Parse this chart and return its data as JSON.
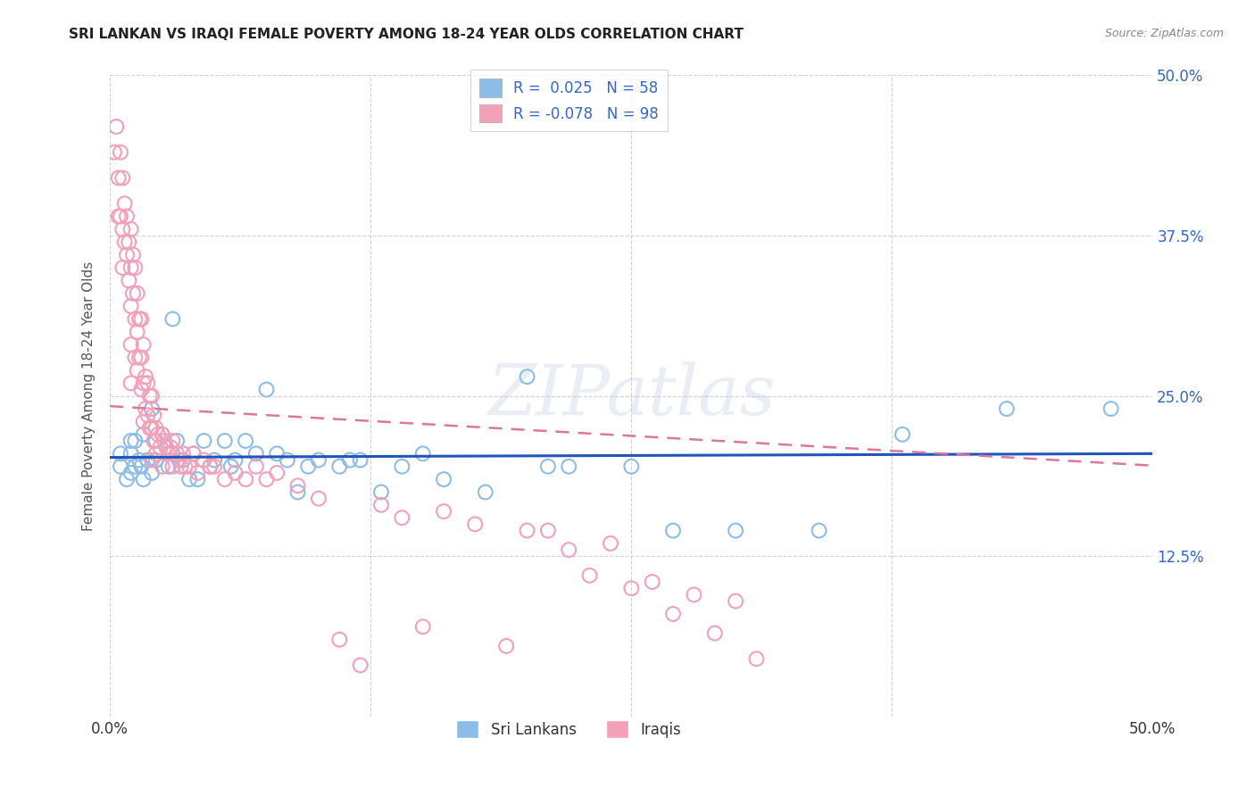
{
  "title": "SRI LANKAN VS IRAQI FEMALE POVERTY AMONG 18-24 YEAR OLDS CORRELATION CHART",
  "source": "Source: ZipAtlas.com",
  "ylabel": "Female Poverty Among 18-24 Year Olds",
  "xlim": [
    0,
    0.5
  ],
  "ylim": [
    0,
    0.5
  ],
  "sri_lankan_color": "#8BBDE8",
  "sri_lankan_line_color": "#2255BB",
  "iraqi_color": "#F4A0B8",
  "iraqi_line_color": "#DD7799",
  "sri_lankan_R": 0.025,
  "sri_lankan_N": 58,
  "iraqi_R": -0.078,
  "iraqi_N": 98,
  "watermark": "ZIPatlas",
  "background_color": "#ffffff",
  "grid_color": "#cccccc",
  "right_tick_color": "#3366CC",
  "sri_lankans_x": [
    0.005,
    0.005,
    0.008,
    0.01,
    0.01,
    0.01,
    0.012,
    0.012,
    0.014,
    0.015,
    0.016,
    0.016,
    0.018,
    0.02,
    0.02,
    0.022,
    0.022,
    0.025,
    0.028,
    0.03,
    0.03,
    0.032,
    0.035,
    0.038,
    0.04,
    0.042,
    0.045,
    0.048,
    0.05,
    0.055,
    0.058,
    0.06,
    0.065,
    0.07,
    0.075,
    0.08,
    0.085,
    0.09,
    0.095,
    0.1,
    0.11,
    0.115,
    0.12,
    0.13,
    0.14,
    0.15,
    0.16,
    0.18,
    0.2,
    0.21,
    0.22,
    0.25,
    0.27,
    0.3,
    0.34,
    0.38,
    0.43,
    0.48
  ],
  "sri_lankans_y": [
    0.205,
    0.195,
    0.185,
    0.215,
    0.205,
    0.19,
    0.215,
    0.195,
    0.2,
    0.195,
    0.22,
    0.185,
    0.2,
    0.24,
    0.19,
    0.215,
    0.2,
    0.22,
    0.195,
    0.31,
    0.205,
    0.215,
    0.2,
    0.185,
    0.205,
    0.185,
    0.215,
    0.195,
    0.2,
    0.215,
    0.195,
    0.2,
    0.215,
    0.205,
    0.255,
    0.205,
    0.2,
    0.175,
    0.195,
    0.2,
    0.195,
    0.2,
    0.2,
    0.175,
    0.195,
    0.205,
    0.185,
    0.175,
    0.265,
    0.195,
    0.195,
    0.195,
    0.145,
    0.145,
    0.145,
    0.22,
    0.24,
    0.24
  ],
  "iraqis_x": [
    0.002,
    0.003,
    0.004,
    0.004,
    0.005,
    0.005,
    0.006,
    0.006,
    0.006,
    0.007,
    0.007,
    0.008,
    0.008,
    0.009,
    0.009,
    0.01,
    0.01,
    0.01,
    0.01,
    0.01,
    0.011,
    0.011,
    0.012,
    0.012,
    0.012,
    0.013,
    0.013,
    0.013,
    0.014,
    0.014,
    0.015,
    0.015,
    0.015,
    0.016,
    0.016,
    0.016,
    0.017,
    0.017,
    0.018,
    0.018,
    0.019,
    0.019,
    0.02,
    0.02,
    0.02,
    0.021,
    0.021,
    0.022,
    0.022,
    0.023,
    0.024,
    0.025,
    0.025,
    0.026,
    0.027,
    0.028,
    0.029,
    0.03,
    0.03,
    0.032,
    0.033,
    0.034,
    0.035,
    0.036,
    0.038,
    0.04,
    0.042,
    0.045,
    0.048,
    0.05,
    0.055,
    0.06,
    0.065,
    0.07,
    0.075,
    0.08,
    0.09,
    0.1,
    0.11,
    0.12,
    0.13,
    0.14,
    0.15,
    0.16,
    0.175,
    0.19,
    0.2,
    0.21,
    0.22,
    0.23,
    0.24,
    0.25,
    0.26,
    0.27,
    0.28,
    0.29,
    0.3,
    0.31
  ],
  "iraqis_y": [
    0.44,
    0.46,
    0.42,
    0.39,
    0.44,
    0.39,
    0.42,
    0.38,
    0.35,
    0.4,
    0.37,
    0.39,
    0.36,
    0.37,
    0.34,
    0.38,
    0.35,
    0.32,
    0.29,
    0.26,
    0.36,
    0.33,
    0.35,
    0.31,
    0.28,
    0.33,
    0.3,
    0.27,
    0.31,
    0.28,
    0.31,
    0.28,
    0.255,
    0.29,
    0.26,
    0.23,
    0.265,
    0.24,
    0.26,
    0.235,
    0.25,
    0.225,
    0.25,
    0.225,
    0.2,
    0.235,
    0.215,
    0.225,
    0.205,
    0.22,
    0.21,
    0.22,
    0.195,
    0.215,
    0.21,
    0.205,
    0.21,
    0.215,
    0.195,
    0.205,
    0.2,
    0.195,
    0.205,
    0.195,
    0.195,
    0.205,
    0.19,
    0.2,
    0.195,
    0.195,
    0.185,
    0.19,
    0.185,
    0.195,
    0.185,
    0.19,
    0.18,
    0.17,
    0.06,
    0.04,
    0.165,
    0.155,
    0.07,
    0.16,
    0.15,
    0.055,
    0.145,
    0.145,
    0.13,
    0.11,
    0.135,
    0.1,
    0.105,
    0.08,
    0.095,
    0.065,
    0.09,
    0.045
  ]
}
